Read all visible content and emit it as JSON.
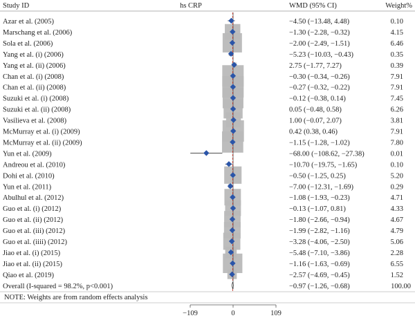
{
  "chart_data": {
    "type": "forest",
    "title": "hs CRP",
    "header": {
      "study": "Study ID",
      "effect": "WMD (95% CI)",
      "weight": "Weight%"
    },
    "xaxis": {
      "ticks": [
        -109,
        0,
        109
      ],
      "tick_labels": [
        "−109",
        "0",
        "109"
      ],
      "range": [
        -109,
        109
      ]
    },
    "studies": [
      {
        "label": "Azar et al. (2005)",
        "est": -4.5,
        "lo": -13.48,
        "hi": 4.48,
        "ci_text": "−4.50 (−13.48, 4.48)",
        "weight": 0.1,
        "weight_text": "0.10"
      },
      {
        "label": "Marschang et al. (2006)",
        "est": -1.3,
        "lo": -2.28,
        "hi": -0.32,
        "ci_text": "−1.30 (−2.28, −0.32)",
        "weight": 4.15,
        "weight_text": "4.15"
      },
      {
        "label": "Sola et al. (2006)",
        "est": -2.0,
        "lo": -2.49,
        "hi": -1.51,
        "ci_text": "−2.00 (−2.49, −1.51)",
        "weight": 6.46,
        "weight_text": "6.46"
      },
      {
        "label": "Yang et al. (i) (2006)",
        "est": -5.23,
        "lo": -10.03,
        "hi": -0.43,
        "ci_text": "−5.23 (−10.03, −0.43)",
        "weight": 0.35,
        "weight_text": "0.35"
      },
      {
        "label": "Yang et al. (ii) (2006)",
        "est": 2.75,
        "lo": -1.77,
        "hi": 7.27,
        "ci_text": "2.75 (−1.77, 7.27)",
        "weight": 0.39,
        "weight_text": "0.39"
      },
      {
        "label": "Chan et al. (i) (2008)",
        "est": -0.3,
        "lo": -0.34,
        "hi": -0.26,
        "ci_text": "−0.30 (−0.34, −0.26)",
        "weight": 7.91,
        "weight_text": "7.91"
      },
      {
        "label": "Chan et al. (ii) (2008)",
        "est": -0.27,
        "lo": -0.32,
        "hi": -0.22,
        "ci_text": "−0.27 (−0.32, −0.22)",
        "weight": 7.91,
        "weight_text": "7.91"
      },
      {
        "label": "Suzuki et al. (i) (2008)",
        "est": -0.12,
        "lo": -0.38,
        "hi": 0.14,
        "ci_text": "−0.12 (−0.38, 0.14)",
        "weight": 7.45,
        "weight_text": "7.45"
      },
      {
        "label": "Suzuki et al. (ii) (2008)",
        "est": 0.05,
        "lo": -0.48,
        "hi": 0.58,
        "ci_text": "0.05 (−0.48, 0.58)",
        "weight": 6.26,
        "weight_text": "6.26"
      },
      {
        "label": "Vasilieva et al. (2008)",
        "est": 1.0,
        "lo": -0.07,
        "hi": 2.07,
        "ci_text": "1.00 (−0.07, 2.07)",
        "weight": 3.81,
        "weight_text": "3.81"
      },
      {
        "label": "McMurray et al. (i) (2009)",
        "est": 0.42,
        "lo": 0.38,
        "hi": 0.46,
        "ci_text": "0.42 (0.38, 0.46)",
        "weight": 7.91,
        "weight_text": "7.91"
      },
      {
        "label": "McMurray et al. (ii) (2009)",
        "est": -1.15,
        "lo": -1.28,
        "hi": -1.02,
        "ci_text": "−1.15 (−1.28, −1.02)",
        "weight": 7.8,
        "weight_text": "7.80"
      },
      {
        "label": "Yun et al. (2009)",
        "est": -68.0,
        "lo": -108.62,
        "hi": -27.38,
        "ci_text": "−68.00 (−108.62, −27.38)",
        "weight": 0.01,
        "weight_text": "0.01"
      },
      {
        "label": "Andreou et al. (2010)",
        "est": -10.7,
        "lo": -19.75,
        "hi": -1.65,
        "ci_text": "−10.70 (−19.75, −1.65)",
        "weight": 0.1,
        "weight_text": "0.10"
      },
      {
        "label": "Dohi et al. (2010)",
        "est": -0.5,
        "lo": -1.25,
        "hi": 0.25,
        "ci_text": "−0.50 (−1.25, 0.25)",
        "weight": 5.2,
        "weight_text": "5.20"
      },
      {
        "label": "Yun et al. (2011)",
        "est": -7.0,
        "lo": -12.31,
        "hi": -1.69,
        "ci_text": "−7.00 (−12.31, −1.69)",
        "weight": 0.29,
        "weight_text": "0.29"
      },
      {
        "label": "Abulhul et al. (2012)",
        "est": -1.08,
        "lo": -1.93,
        "hi": -0.23,
        "ci_text": "−1.08 (−1.93, −0.23)",
        "weight": 4.71,
        "weight_text": "4.71"
      },
      {
        "label": "Guo et al. (i) (2012)",
        "est": -0.13,
        "lo": -1.07,
        "hi": 0.81,
        "ci_text": "−0.13 (−1.07, 0.81)",
        "weight": 4.33,
        "weight_text": "4.33"
      },
      {
        "label": "Guo et al. (ii) (2012)",
        "est": -1.8,
        "lo": -2.66,
        "hi": -0.94,
        "ci_text": "−1.80 (−2.66, −0.94)",
        "weight": 4.67,
        "weight_text": "4.67"
      },
      {
        "label": "Guo et al. (iii) (2012)",
        "est": -1.99,
        "lo": -2.82,
        "hi": -1.16,
        "ci_text": "−1.99 (−2.82, −1.16)",
        "weight": 4.79,
        "weight_text": "4.79"
      },
      {
        "label": "Guo et al. (iiii) (2012)",
        "est": -3.28,
        "lo": -4.06,
        "hi": -2.5,
        "ci_text": "−3.28 (−4.06, −2.50)",
        "weight": 5.06,
        "weight_text": "5.06"
      },
      {
        "label": "Jiao et al. (i) (2015)",
        "est": -5.48,
        "lo": -7.1,
        "hi": -3.86,
        "ci_text": "−5.48 (−7.10, −3.86)",
        "weight": 2.28,
        "weight_text": "2.28"
      },
      {
        "label": "Jiao et al. (ii) (2015)",
        "est": -1.16,
        "lo": -1.63,
        "hi": -0.69,
        "ci_text": "−1.16 (−1.63, −0.69)",
        "weight": 6.55,
        "weight_text": "6.55"
      },
      {
        "label": "Qiao et al. (2019)",
        "est": -2.57,
        "lo": -4.69,
        "hi": -0.45,
        "ci_text": "−2.57 (−4.69, −0.45)",
        "weight": 1.52,
        "weight_text": "1.52"
      }
    ],
    "overall": {
      "label": "Overall (I-squared = 98.2%, p<0.001)",
      "est": -0.97,
      "lo": -1.26,
      "hi": -0.68,
      "ci_text": "−0.97 (−1.26, −0.68)",
      "weight_text": "100.00"
    },
    "note": "NOTE: Weights are from random effects analysis",
    "colors": {
      "marker": "#2b55a8",
      "box": "#b9b9b9",
      "overall_line": "#c0392b",
      "axis": "#555555",
      "text": "#222222"
    }
  }
}
